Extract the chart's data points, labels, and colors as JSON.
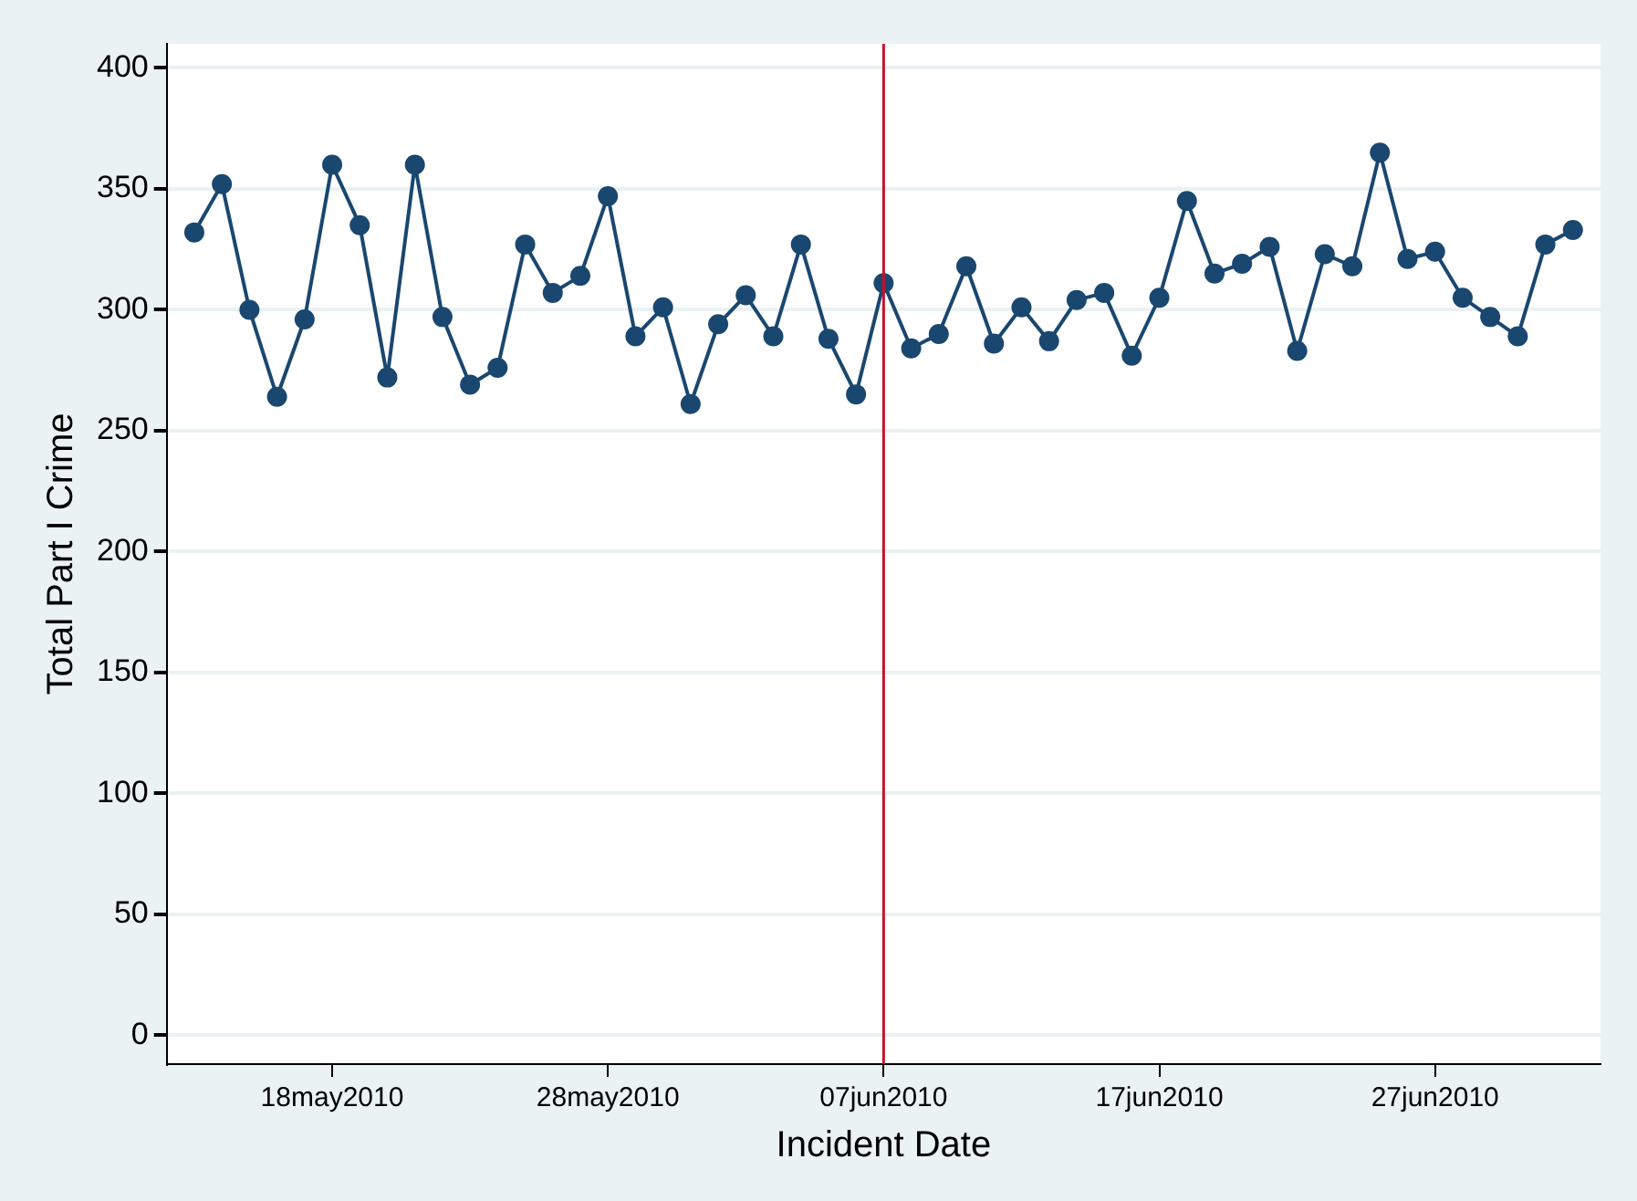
{
  "chart_data": {
    "type": "line",
    "xlabel": "Incident Date",
    "ylabel": "Total Part I Crime",
    "x": [
      "2010-05-13",
      "2010-05-14",
      "2010-05-15",
      "2010-05-16",
      "2010-05-17",
      "2010-05-18",
      "2010-05-19",
      "2010-05-20",
      "2010-05-21",
      "2010-05-22",
      "2010-05-23",
      "2010-05-24",
      "2010-05-25",
      "2010-05-26",
      "2010-05-27",
      "2010-05-28",
      "2010-05-29",
      "2010-05-30",
      "2010-05-31",
      "2010-06-01",
      "2010-06-02",
      "2010-06-03",
      "2010-06-04",
      "2010-06-05",
      "2010-06-06",
      "2010-06-07",
      "2010-06-08",
      "2010-06-09",
      "2010-06-10",
      "2010-06-11",
      "2010-06-12",
      "2010-06-13",
      "2010-06-14",
      "2010-06-15",
      "2010-06-16",
      "2010-06-17",
      "2010-06-18",
      "2010-06-19",
      "2010-06-20",
      "2010-06-21",
      "2010-06-22",
      "2010-06-23",
      "2010-06-24",
      "2010-06-25",
      "2010-06-26",
      "2010-06-27",
      "2010-06-28",
      "2010-06-29",
      "2010-06-30",
      "2010-07-01",
      "2010-07-02"
    ],
    "series": [
      {
        "color": "#1a476f",
        "values": [
          332,
          352,
          300,
          264,
          296,
          360,
          335,
          272,
          360,
          297,
          269,
          276,
          327,
          307,
          314,
          347,
          289,
          301,
          261,
          294,
          306,
          289,
          327,
          288,
          265,
          311,
          284,
          290,
          318,
          286,
          301,
          287,
          304,
          307,
          281,
          305,
          345,
          315,
          319,
          326,
          283,
          323,
          318,
          365,
          321,
          324,
          305,
          297,
          289,
          327,
          333
        ]
      }
    ],
    "xlim": [
      "2010-05-12",
      "2010-07-03"
    ],
    "xticks": [
      {
        "value": "2010-05-18",
        "label": "18may2010"
      },
      {
        "value": "2010-05-28",
        "label": "28may2010"
      },
      {
        "value": "2010-06-07",
        "label": "07jun2010"
      },
      {
        "value": "2010-06-17",
        "label": "17jun2010"
      },
      {
        "value": "2010-06-27",
        "label": "27jun2010"
      }
    ],
    "ylim": [
      -12,
      410
    ],
    "yticks": [
      0,
      50,
      100,
      150,
      200,
      250,
      300,
      350,
      400
    ],
    "ref_lines": [
      {
        "axis": "x",
        "value": "2010-06-07",
        "color": "#c8102e"
      }
    ],
    "grid": "y",
    "marker": "circle",
    "line_style": "solid",
    "legend": false
  }
}
